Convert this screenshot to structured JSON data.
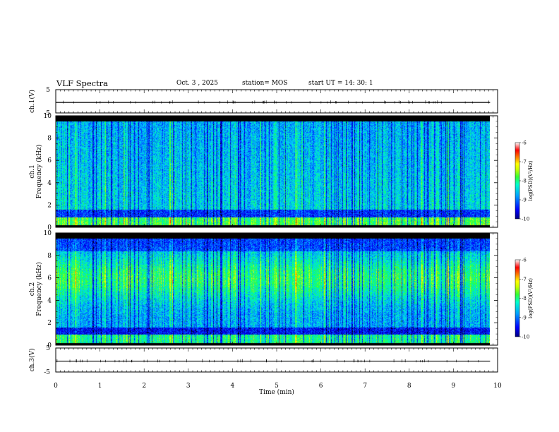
{
  "header": {
    "title": "VLF Spectra",
    "date": "Oct. 3  , 2025",
    "station": "station= MOS",
    "start": "start  UT  =   14: 30: 1"
  },
  "colors": {
    "colormap": [
      "#000080",
      "#0000ff",
      "#0066ff",
      "#00ccff",
      "#00ff99",
      "#33ff33",
      "#ccff00",
      "#ffff00",
      "#ff9900",
      "#ff0000",
      "#ffffff"
    ],
    "background": "#000000"
  },
  "chart_data": [
    {
      "type": "line",
      "name": "ch1-waveform",
      "ylabel": "ch.1(V)",
      "ylim": [
        -5,
        5
      ],
      "yticks": [
        "5",
        "-5"
      ],
      "series": [
        {
          "name": "ch.1",
          "value": -0.5
        }
      ]
    },
    {
      "type": "heatmap",
      "name": "ch1-spectrogram",
      "ylabel_top": "ch.1",
      "ylabel": "Frequency (kHz)",
      "ylim": [
        0,
        10
      ],
      "yticks": [
        "0",
        "2",
        "4",
        "6",
        "8",
        "10"
      ],
      "active_band_khz": [
        0.2,
        9.5
      ],
      "colorbar": {
        "label": "log(PSD)(V²/Hz)",
        "range": [
          -10,
          -6
        ],
        "ticks": [
          "-6",
          "-7",
          "-8",
          "-9",
          "-10"
        ]
      }
    },
    {
      "type": "heatmap",
      "name": "ch2-spectrogram",
      "ylabel_top": "ch.2",
      "ylabel": "Frequency (kHz)",
      "ylim": [
        0,
        10
      ],
      "yticks": [
        "0",
        "2",
        "4",
        "6",
        "8",
        "10"
      ],
      "active_band_khz": [
        0.2,
        9.5
      ],
      "colorbar": {
        "label": "log(PSD)(V²/Hz)",
        "range": [
          -10,
          -6
        ],
        "ticks": [
          "-6",
          "-7",
          "-8",
          "-9",
          "-10"
        ]
      }
    },
    {
      "type": "line",
      "name": "ch3-waveform",
      "ylabel": "ch.3(V)",
      "ylim": [
        -5,
        5
      ],
      "yticks": [
        "5",
        "-5"
      ],
      "series": [
        {
          "name": "ch.3",
          "value": -0.5
        }
      ]
    }
  ],
  "xaxis": {
    "label": "Time  (min)",
    "xlim": [
      0,
      10
    ],
    "ticks": [
      "0",
      "1",
      "2",
      "3",
      "4",
      "5",
      "6",
      "7",
      "8",
      "9",
      "10"
    ],
    "data_end_min": 9.83
  }
}
